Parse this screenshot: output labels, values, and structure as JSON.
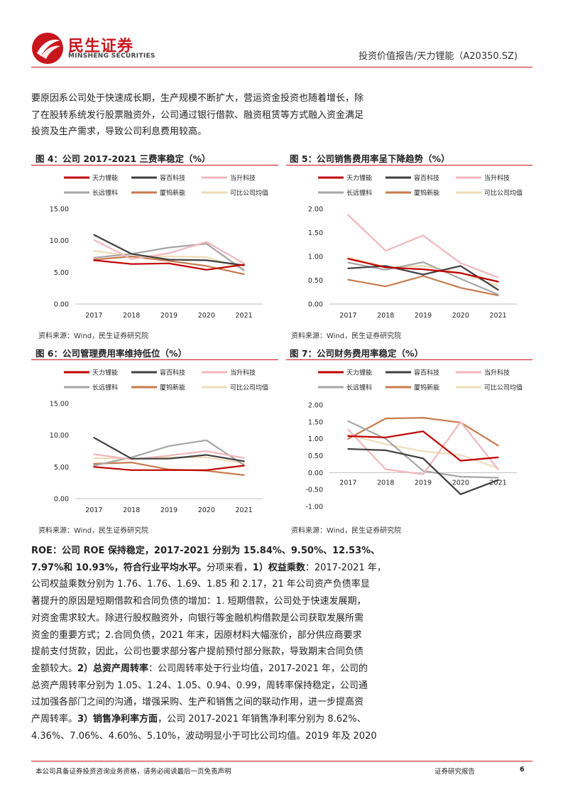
{
  "header": {
    "brand_cn": "民生证券",
    "brand_en": "MINSHENG SECURITIES",
    "report_title": "投资价值报告/天力锂能（A20350.SZ)",
    "brand_color": "#c8161d"
  },
  "intro_lines": [
    "要原因系公司处于快速成长期，生产规模不断扩大，营运资金投资也随着增长，除",
    "了在股转系统发行股票融资外，公司通过银行借款、融资租赁等方式融入资金满足",
    "投资及生产需求，导致公司利息费用较高。"
  ],
  "source_text": "资料来源：Wind，民生证券研究院",
  "charts": [
    {
      "title": "图 4：公司 2017-2021 三费率稳定（%）"
    },
    {
      "title": "图 5：公司销售费用率呈下降趋势（%）"
    },
    {
      "title": "图 6：公司管理费用率维持低位（%）"
    },
    {
      "title": "图 7：公司财务费用率稳定（%）"
    }
  ],
  "chart_data": [
    {
      "type": "line",
      "title": "图 4：公司 2017-2021 三费率稳定（%）",
      "x": [
        "2017",
        "2018",
        "2019",
        "2020",
        "2021"
      ],
      "ylim": [
        0,
        15
      ],
      "yticks": [
        "0.00",
        "5.00",
        "10.00",
        "15.00"
      ],
      "grid": false,
      "legend": "top",
      "series": [
        {
          "name": "天力锂能",
          "color": "#c00000",
          "values": [
            6.9,
            6.3,
            6.4,
            5.4,
            6.2
          ]
        },
        {
          "name": "容百科技",
          "color": "#404040",
          "values": [
            10.9,
            7.9,
            7.0,
            6.9,
            6.1
          ]
        },
        {
          "name": "当升科技",
          "color": "#f2b6bc",
          "values": [
            10.1,
            7.1,
            8.0,
            9.8,
            6.4
          ]
        },
        {
          "name": "长远锂科",
          "color": "#a6a6a6",
          "values": [
            7.3,
            7.9,
            8.9,
            9.5,
            5.3
          ]
        },
        {
          "name": "厦钨新能",
          "color": "#c97a4b",
          "values": [
            7.0,
            7.5,
            6.8,
            6.0,
            4.7
          ]
        },
        {
          "name": "可比公司均值",
          "color": "#eedcb6",
          "values": [
            8.4,
            7.5,
            7.5,
            7.4,
            5.6
          ]
        }
      ]
    },
    {
      "type": "line",
      "title": "图 5：公司销售费用率呈下降趋势（%）",
      "x": [
        "2017",
        "2018",
        "2019",
        "2020",
        "2021"
      ],
      "ylim": [
        0,
        2
      ],
      "yticks": [
        "0.00",
        "0.50",
        "1.00",
        "1.50",
        "2.00"
      ],
      "grid": false,
      "legend": "top",
      "series": [
        {
          "name": "天力锂能",
          "color": "#c00000",
          "values": [
            0.95,
            0.77,
            0.73,
            0.65,
            0.47
          ]
        },
        {
          "name": "容百科技",
          "color": "#404040",
          "values": [
            0.75,
            0.8,
            0.62,
            0.8,
            0.3
          ]
        },
        {
          "name": "当升科技",
          "color": "#f2b6bc",
          "values": [
            1.87,
            1.12,
            1.44,
            0.86,
            0.56
          ]
        },
        {
          "name": "长远锂科",
          "color": "#a6a6a6",
          "values": [
            0.87,
            0.72,
            0.88,
            0.53,
            0.2
          ]
        },
        {
          "name": "厦钨新能",
          "color": "#c97a4b",
          "values": [
            0.51,
            0.37,
            0.59,
            0.34,
            0.18
          ]
        },
        {
          "name": "可比公司均值",
          "color": "#eedcb6",
          "values": [
            0.98,
            0.78,
            0.8,
            0.66,
            0.38
          ]
        }
      ]
    },
    {
      "type": "line",
      "title": "图 6：公司管理费用率维持低位（%）",
      "x": [
        "2017",
        "2018",
        "2019",
        "2020",
        "2021"
      ],
      "ylim": [
        0,
        15
      ],
      "yticks": [
        "0.00",
        "5.00",
        "10.00",
        "15.00"
      ],
      "grid": false,
      "legend": "top",
      "series": [
        {
          "name": "天力锂能",
          "color": "#c00000",
          "values": [
            5.0,
            4.5,
            4.5,
            4.5,
            5.2
          ]
        },
        {
          "name": "容百科技",
          "color": "#404040",
          "values": [
            9.6,
            6.3,
            6.3,
            6.9,
            5.9
          ]
        },
        {
          "name": "当升科技",
          "color": "#f2b6bc",
          "values": [
            7.0,
            6.2,
            6.8,
            7.5,
            6.4
          ]
        },
        {
          "name": "长远锂科",
          "color": "#a6a6a6",
          "values": [
            5.2,
            6.5,
            8.3,
            9.2,
            5.3
          ]
        },
        {
          "name": "厦钨新能",
          "color": "#c97a4b",
          "values": [
            5.5,
            5.7,
            4.6,
            4.4,
            3.7
          ]
        },
        {
          "name": "可比公司均值",
          "color": "#eedcb6",
          "values": [
            6.4,
            6.3,
            6.5,
            6.5,
            5.6
          ]
        }
      ]
    },
    {
      "type": "line",
      "title": "图 7：公司财务费用率稳定（%）",
      "x": [
        "2017",
        "2018",
        "2019",
        "2020",
        "2021"
      ],
      "ylim": [
        -1,
        2
      ],
      "yticks": [
        "-1.00",
        "-0.50",
        "0.00",
        "0.50",
        "1.00",
        "1.50",
        "2.00"
      ],
      "grid": false,
      "legend": "top",
      "series": [
        {
          "name": "天力锂能",
          "color": "#c00000",
          "values": [
            1.08,
            1.04,
            1.22,
            0.35,
            0.45
          ]
        },
        {
          "name": "容百科技",
          "color": "#404040",
          "values": [
            0.7,
            0.66,
            0.42,
            -0.64,
            -0.22
          ]
        },
        {
          "name": "当升科技",
          "color": "#f2b6bc",
          "values": [
            1.27,
            0.1,
            -0.05,
            1.5,
            0.1
          ]
        },
        {
          "name": "长远锂科",
          "color": "#a6a6a6",
          "values": [
            1.52,
            1.0,
            0.05,
            -0.12,
            -0.15
          ]
        },
        {
          "name": "厦钨新能",
          "color": "#c97a4b",
          "values": [
            1.0,
            1.6,
            1.62,
            1.48,
            0.8
          ]
        },
        {
          "name": "可比公司均值",
          "color": "#eedcb6",
          "values": [
            1.12,
            0.84,
            0.63,
            0.52,
            0.13
          ]
        }
      ]
    }
  ],
  "roe_lines": [
    [
      {
        "t": "ROE：公司 ROE 保持稳定，2017-2021 分别为 15.84%、9.50%、12.53%、",
        "b": true
      }
    ],
    [
      {
        "t": "7.97%和 10.93%，符合行业平均水平。",
        "b": true
      },
      {
        "t": "分项来看，",
        "b": false
      },
      {
        "t": "1）权益乘数",
        "b": true
      },
      {
        "t": "：2017-2021 年，",
        "b": false
      }
    ],
    [
      {
        "t": "公司权益乘数分别为 1.76、1.76、1.69、1.85 和 2.17，21 年公司资产负债率显",
        "b": false
      }
    ],
    [
      {
        "t": "著提升的原因是短期借款和合同负债的增加：1. 短期借款，公司处于快速发展期，",
        "b": false
      }
    ],
    [
      {
        "t": "对资金需求较大。除进行股权融资外，向银行等金融机构借款是公司获取发展所需",
        "b": false
      }
    ],
    [
      {
        "t": "资金的重要方式；2.合同负债，2021 年末，因原材料大幅涨价，部分供应商要求",
        "b": false
      }
    ],
    [
      {
        "t": "提前支付货款，因此，公司也要求部分客户提前预付部分账款，导致期末合同负债",
        "b": false
      }
    ],
    [
      {
        "t": "金额较大。",
        "b": false
      },
      {
        "t": "2）总资产周转率",
        "b": true
      },
      {
        "t": "：公司周转率处于行业均值，2017-2021 年，公司的",
        "b": false
      }
    ],
    [
      {
        "t": "总资产周转率分别为 1.05、1.24、1.05、0.94、0.99，周转率保持稳定，公司通",
        "b": false
      }
    ],
    [
      {
        "t": "过加强各部门之间的沟通，增强采购、生产和销售之间的联动作用，进一步提高资",
        "b": false
      }
    ],
    [
      {
        "t": "产周转率。",
        "b": false
      },
      {
        "t": "3）销售净利率方面",
        "b": true
      },
      {
        "t": "，公司 2017-2021 年销售净利率分别为 8.62%、",
        "b": false
      }
    ],
    [
      {
        "t": "4.36%、7.06%、4.60%、5.10%，波动明显小于可比公司均值。2019 年及 2020",
        "b": false
      }
    ]
  ],
  "footer": {
    "disclaimer": "本公司具备证券投资咨询业务资格，请务必阅读最后一页免责声明",
    "report_type": "证券研究报告",
    "page_number": "6"
  }
}
